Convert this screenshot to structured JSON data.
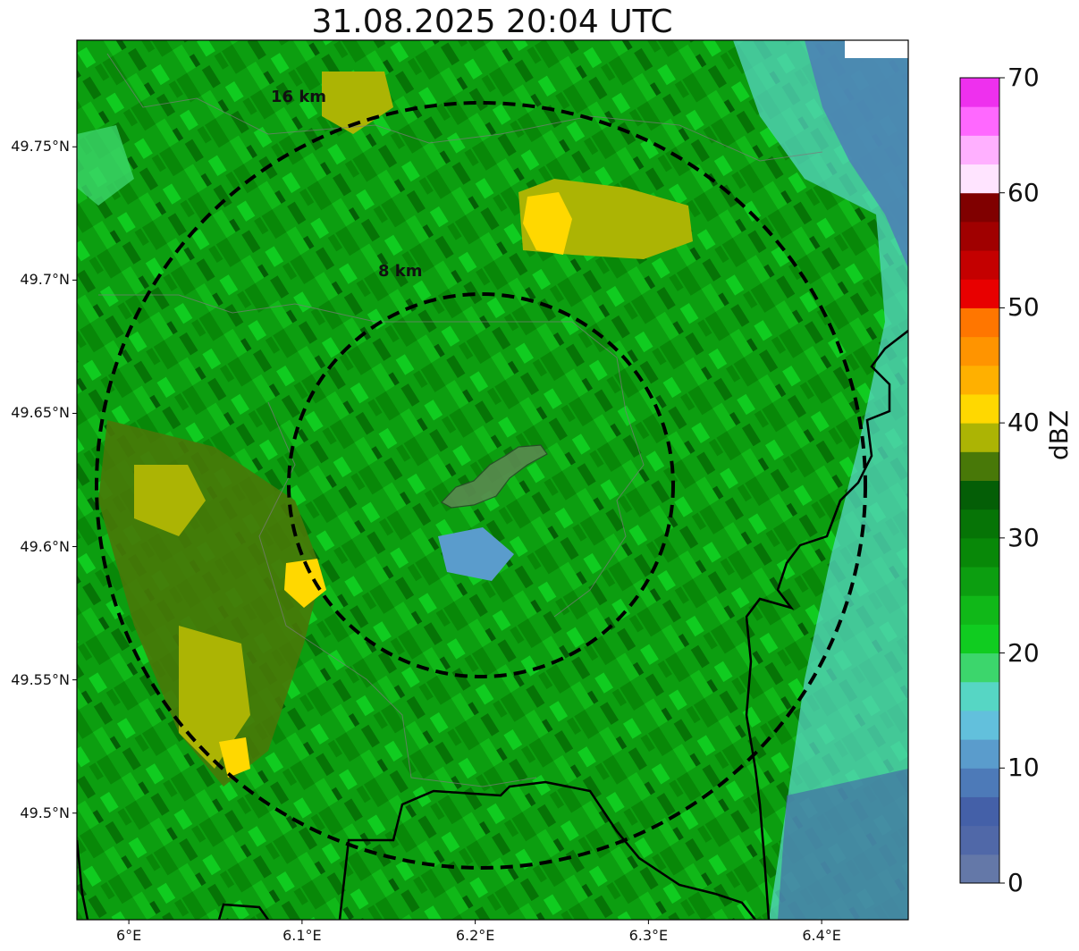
{
  "title": "31.08.2025 20:04 UTC",
  "map": {
    "y_ticks": [
      {
        "label": "49.75°N",
        "value": 49.75
      },
      {
        "label": "49.7°N",
        "value": 49.7
      },
      {
        "label": "49.65°N",
        "value": 49.65
      },
      {
        "label": "49.6°N",
        "value": 49.6
      },
      {
        "label": "49.55°N",
        "value": 49.55
      },
      {
        "label": "49.5°N",
        "value": 49.5
      }
    ],
    "x_ticks": [
      {
        "label": "6°E",
        "value": 6.0
      },
      {
        "label": "6.1°E",
        "value": 6.1
      },
      {
        "label": "6.2°E",
        "value": 6.2
      },
      {
        "label": "6.3°E",
        "value": 6.3
      },
      {
        "label": "6.4°E",
        "value": 6.4
      }
    ],
    "lon_range": [
      5.97,
      6.45
    ],
    "lat_range": [
      49.46,
      49.79
    ],
    "rings": [
      {
        "label": "8 km",
        "radius_km": 8
      },
      {
        "label": "16 km",
        "radius_km": 16
      }
    ],
    "ring_center": {
      "lon": 6.203,
      "lat": 49.623
    }
  },
  "colorbar": {
    "label": "dBZ",
    "ticks": [
      "0",
      "10",
      "20",
      "30",
      "40",
      "50",
      "60",
      "70"
    ],
    "colors": [
      "#6478a8",
      "#5068a8",
      "#4460a8",
      "#4d7ab8",
      "#5a9ccc",
      "#62c0dc",
      "#56d6c4",
      "#3cd66c",
      "#10cc20",
      "#10b818",
      "#0c9e10",
      "#088808",
      "#067406",
      "#045e06",
      "#487808",
      "#acb404",
      "#ffd800",
      "#ffb000",
      "#ff9400",
      "#ff7600",
      "#e80000",
      "#c40000",
      "#a00000",
      "#800000",
      "#ffe4ff",
      "#ffb0ff",
      "#ff68ff",
      "#ee30ee"
    ]
  },
  "colors": {
    "ring": "#000000",
    "border": "#000000",
    "area": "#5a8a50"
  }
}
